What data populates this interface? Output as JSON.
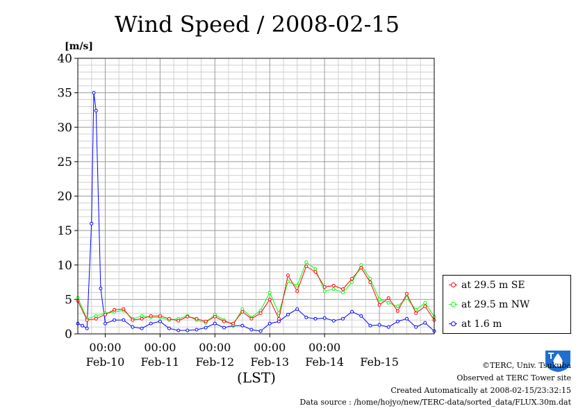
{
  "chart_data": {
    "type": "line",
    "title": "Wind Speed / 2008-02-15",
    "ylabel": "[m/s]",
    "xlabel": "(LST)",
    "ylim": [
      0,
      40
    ],
    "yticks": [
      0,
      5,
      10,
      15,
      20,
      25,
      30,
      35,
      40
    ],
    "xlim": [
      "2008-02-09T12:00",
      "2008-02-15T24:00"
    ],
    "x_tick_time_labels": [
      "00:00",
      "00:00",
      "00:00",
      "00:00",
      "00:00"
    ],
    "x_tick_date_labels": [
      "Feb-10",
      "Feb-11",
      "Feb-12",
      "Feb-13",
      "Feb-14",
      "Feb-15"
    ],
    "grid": true,
    "legend_position": "right-bottom, outside plot",
    "series": [
      {
        "name": "at 29.5 m SE",
        "color": "#ff0000",
        "points": [
          [
            "2008-02-09T12:00",
            4.8
          ],
          [
            "2008-02-09T16:00",
            2.0
          ],
          [
            "2008-02-09T20:00",
            2.2
          ],
          [
            "2008-02-10T00:00",
            2.8
          ],
          [
            "2008-02-10T04:00",
            3.5
          ],
          [
            "2008-02-10T08:00",
            3.6
          ],
          [
            "2008-02-10T12:00",
            2.0
          ],
          [
            "2008-02-10T16:00",
            2.2
          ],
          [
            "2008-02-10T20:00",
            2.6
          ],
          [
            "2008-02-11T00:00",
            2.6
          ],
          [
            "2008-02-11T04:00",
            2.2
          ],
          [
            "2008-02-11T08:00",
            1.9
          ],
          [
            "2008-02-11T12:00",
            2.5
          ],
          [
            "2008-02-11T16:00",
            2.2
          ],
          [
            "2008-02-11T20:00",
            1.8
          ],
          [
            "2008-02-12T00:00",
            2.5
          ],
          [
            "2008-02-12T04:00",
            1.8
          ],
          [
            "2008-02-12T08:00",
            1.5
          ],
          [
            "2008-02-12T12:00",
            3.2
          ],
          [
            "2008-02-12T16:00",
            2.2
          ],
          [
            "2008-02-12T20:00",
            3.0
          ],
          [
            "2008-02-13T00:00",
            5.0
          ],
          [
            "2008-02-13T04:00",
            2.2
          ],
          [
            "2008-02-13T08:00",
            8.5
          ],
          [
            "2008-02-13T12:00",
            6.2
          ],
          [
            "2008-02-13T16:00",
            9.8
          ],
          [
            "2008-02-13T20:00",
            9.0
          ],
          [
            "2008-02-14T00:00",
            6.8
          ],
          [
            "2008-02-14T04:00",
            7.0
          ],
          [
            "2008-02-14T08:00",
            6.5
          ],
          [
            "2008-02-14T12:00",
            8.0
          ],
          [
            "2008-02-14T16:00",
            9.6
          ],
          [
            "2008-02-14T20:00",
            7.5
          ],
          [
            "2008-02-15T00:00",
            4.2
          ],
          [
            "2008-02-15T04:00",
            5.2
          ],
          [
            "2008-02-15T08:00",
            3.3
          ],
          [
            "2008-02-15T12:00",
            5.8
          ],
          [
            "2008-02-15T16:00",
            3.0
          ],
          [
            "2008-02-15T20:00",
            4.0
          ],
          [
            "2008-02-16T00:00",
            2.0
          ]
        ]
      },
      {
        "name": "at 29.5 m NW",
        "color": "#00ff00",
        "points": [
          [
            "2008-02-09T12:00",
            5.2
          ],
          [
            "2008-02-09T16:00",
            2.2
          ],
          [
            "2008-02-09T20:00",
            2.6
          ],
          [
            "2008-02-10T00:00",
            3.0
          ],
          [
            "2008-02-10T04:00",
            3.2
          ],
          [
            "2008-02-10T08:00",
            3.4
          ],
          [
            "2008-02-10T12:00",
            2.2
          ],
          [
            "2008-02-10T16:00",
            2.6
          ],
          [
            "2008-02-10T20:00",
            2.4
          ],
          [
            "2008-02-11T00:00",
            2.4
          ],
          [
            "2008-02-11T04:00",
            2.0
          ],
          [
            "2008-02-11T08:00",
            2.2
          ],
          [
            "2008-02-11T12:00",
            2.6
          ],
          [
            "2008-02-11T16:00",
            2.0
          ],
          [
            "2008-02-11T20:00",
            1.6
          ],
          [
            "2008-02-12T00:00",
            2.8
          ],
          [
            "2008-02-12T04:00",
            2.0
          ],
          [
            "2008-02-12T08:00",
            1.3
          ],
          [
            "2008-02-12T12:00",
            3.6
          ],
          [
            "2008-02-12T16:00",
            2.4
          ],
          [
            "2008-02-12T20:00",
            3.4
          ],
          [
            "2008-02-13T00:00",
            6.0
          ],
          [
            "2008-02-13T04:00",
            3.0
          ],
          [
            "2008-02-13T08:00",
            7.6
          ],
          [
            "2008-02-13T12:00",
            7.0
          ],
          [
            "2008-02-13T16:00",
            10.4
          ],
          [
            "2008-02-13T20:00",
            9.4
          ],
          [
            "2008-02-14T00:00",
            6.2
          ],
          [
            "2008-02-14T04:00",
            6.5
          ],
          [
            "2008-02-14T08:00",
            6.0
          ],
          [
            "2008-02-14T12:00",
            7.5
          ],
          [
            "2008-02-14T16:00",
            10.0
          ],
          [
            "2008-02-14T20:00",
            8.0
          ],
          [
            "2008-02-15T00:00",
            5.0
          ],
          [
            "2008-02-15T04:00",
            4.5
          ],
          [
            "2008-02-15T08:00",
            4.0
          ],
          [
            "2008-02-15T12:00",
            5.2
          ],
          [
            "2008-02-15T16:00",
            3.5
          ],
          [
            "2008-02-15T20:00",
            4.5
          ],
          [
            "2008-02-16T00:00",
            2.5
          ]
        ]
      },
      {
        "name": "at 1.6 m",
        "color": "#0000ff",
        "points": [
          [
            "2008-02-09T12:00",
            1.5
          ],
          [
            "2008-02-09T14:00",
            1.2
          ],
          [
            "2008-02-09T16:00",
            0.8
          ],
          [
            "2008-02-09T18:00",
            16.0
          ],
          [
            "2008-02-09T19:00",
            35.0
          ],
          [
            "2008-02-09T20:00",
            32.4
          ],
          [
            "2008-02-09T22:00",
            6.6
          ],
          [
            "2008-02-10T00:00",
            1.5
          ],
          [
            "2008-02-10T04:00",
            2.0
          ],
          [
            "2008-02-10T08:00",
            2.0
          ],
          [
            "2008-02-10T12:00",
            1.0
          ],
          [
            "2008-02-10T16:00",
            0.8
          ],
          [
            "2008-02-10T20:00",
            1.5
          ],
          [
            "2008-02-11T00:00",
            1.8
          ],
          [
            "2008-02-11T04:00",
            0.8
          ],
          [
            "2008-02-11T08:00",
            0.5
          ],
          [
            "2008-02-11T12:00",
            0.5
          ],
          [
            "2008-02-11T16:00",
            0.6
          ],
          [
            "2008-02-11T20:00",
            0.9
          ],
          [
            "2008-02-12T00:00",
            1.5
          ],
          [
            "2008-02-12T04:00",
            0.9
          ],
          [
            "2008-02-12T08:00",
            1.2
          ],
          [
            "2008-02-12T12:00",
            1.2
          ],
          [
            "2008-02-12T16:00",
            0.6
          ],
          [
            "2008-02-12T20:00",
            0.4
          ],
          [
            "2008-02-13T00:00",
            1.5
          ],
          [
            "2008-02-13T04:00",
            1.8
          ],
          [
            "2008-02-13T08:00",
            2.8
          ],
          [
            "2008-02-13T12:00",
            3.6
          ],
          [
            "2008-02-13T16:00",
            2.4
          ],
          [
            "2008-02-13T20:00",
            2.2
          ],
          [
            "2008-02-14T00:00",
            2.3
          ],
          [
            "2008-02-14T04:00",
            1.9
          ],
          [
            "2008-02-14T08:00",
            2.2
          ],
          [
            "2008-02-14T12:00",
            3.2
          ],
          [
            "2008-02-14T16:00",
            2.6
          ],
          [
            "2008-02-14T20:00",
            1.2
          ],
          [
            "2008-02-15T00:00",
            1.3
          ],
          [
            "2008-02-15T04:00",
            1.0
          ],
          [
            "2008-02-15T08:00",
            1.8
          ],
          [
            "2008-02-15T12:00",
            2.2
          ],
          [
            "2008-02-15T16:00",
            1.0
          ],
          [
            "2008-02-15T20:00",
            1.6
          ],
          [
            "2008-02-16T00:00",
            0.4
          ]
        ]
      }
    ]
  },
  "footer": {
    "copyright": "©TERC, Univ. Tsukuba",
    "observed": "Observed at TERC Tower site",
    "created": "Created Automatically at 2008-02-15/23:32:15",
    "source": "Data source : /home/hojyo/new/TERC-data/sorted_data/FLUX.30m.dat"
  },
  "logo": {
    "text": "TERC"
  }
}
